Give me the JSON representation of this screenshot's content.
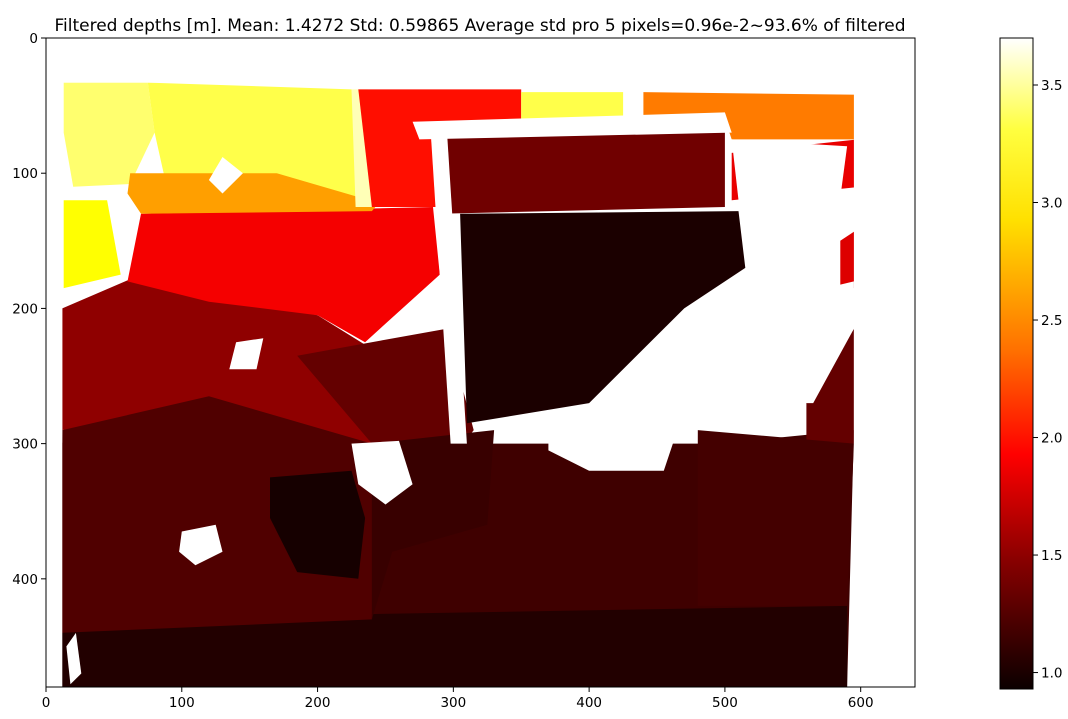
{
  "chart_data": {
    "type": "heatmap",
    "title": "Filtered depths [m]. Mean: 1.4272 Std: 0.59865 Average std pro 5 pixels=0.96e-2~93.6% of filtered",
    "xlabel": "",
    "ylabel": "",
    "xlim": [
      0,
      640
    ],
    "ylim": [
      480,
      0
    ],
    "xticks": [
      0,
      100,
      200,
      300,
      400,
      500,
      600
    ],
    "yticks": [
      0,
      100,
      200,
      300,
      400
    ],
    "grid": false,
    "colormap": "hot",
    "colorbar": {
      "range": [
        0.93,
        3.7
      ],
      "ticks": [
        1.0,
        1.5,
        2.0,
        2.5,
        3.0,
        3.5
      ],
      "tick_labels": [
        "1.0",
        "1.5",
        "2.0",
        "2.5",
        "3.0",
        "3.5"
      ],
      "placement": "right"
    },
    "missing_color": "#ffffff",
    "regions": [
      {
        "name": "lower-floor",
        "points": [
          [
            10,
            480
          ],
          [
            590,
            480
          ],
          [
            595,
            290
          ],
          [
            495,
            300
          ],
          [
            240,
            300
          ],
          [
            120,
            265
          ],
          [
            60,
            285
          ],
          [
            10,
            300
          ]
        ],
        "value": 1.15
      },
      {
        "name": "bottom-band",
        "points": [
          [
            10,
            480
          ],
          [
            590,
            480
          ],
          [
            590,
            420
          ],
          [
            10,
            430
          ]
        ],
        "value": 1.03
      },
      {
        "name": "left-wall-lower",
        "points": [
          [
            12,
            290
          ],
          [
            130,
            250
          ],
          [
            240,
            300
          ],
          [
            240,
            430
          ],
          [
            10,
            440
          ]
        ],
        "value": 1.22
      },
      {
        "name": "left-mid",
        "points": [
          [
            12,
            200
          ],
          [
            70,
            175
          ],
          [
            200,
            205
          ],
          [
            240,
            230
          ],
          [
            240,
            300
          ],
          [
            120,
            265
          ],
          [
            12,
            290
          ]
        ],
        "value": 1.48
      },
      {
        "name": "left-red-upper",
        "points": [
          [
            60,
            180
          ],
          [
            70,
            130
          ],
          [
            285,
            125
          ],
          [
            290,
            175
          ],
          [
            235,
            225
          ],
          [
            200,
            205
          ],
          [
            120,
            195
          ]
        ],
        "value": 1.9
      },
      {
        "name": "center-mid",
        "points": [
          [
            185,
            235
          ],
          [
            295,
            215
          ],
          [
            315,
            290
          ],
          [
            300,
            310
          ],
          [
            240,
            300
          ]
        ],
        "value": 1.3
      },
      {
        "name": "center-lower",
        "points": [
          [
            240,
            300
          ],
          [
            330,
            290
          ],
          [
            325,
            360
          ],
          [
            255,
            380
          ],
          [
            240,
            430
          ]
        ],
        "value": 1.12
      },
      {
        "name": "center-dark-object",
        "points": [
          [
            165,
            325
          ],
          [
            225,
            320
          ],
          [
            235,
            355
          ],
          [
            230,
            400
          ],
          [
            185,
            395
          ],
          [
            165,
            355
          ]
        ],
        "value": 0.98
      },
      {
        "name": "upper-left-bright",
        "points": [
          [
            13,
            33
          ],
          [
            75,
            33
          ],
          [
            80,
            70
          ],
          [
            62,
            108
          ],
          [
            20,
            110
          ],
          [
            13,
            70
          ]
        ],
        "value": 3.3
      },
      {
        "name": "upper-left-yellow",
        "points": [
          [
            75,
            33
          ],
          [
            225,
            38
          ],
          [
            240,
            125
          ],
          [
            170,
            125
          ],
          [
            90,
            115
          ],
          [
            80,
            70
          ]
        ],
        "value": 3.2
      },
      {
        "name": "upper-left-orange-band",
        "points": [
          [
            62,
            100
          ],
          [
            170,
            100
          ],
          [
            245,
            122
          ],
          [
            240,
            128
          ],
          [
            70,
            130
          ],
          [
            60,
            115
          ]
        ],
        "value": 2.6
      },
      {
        "name": "left-edge-bright",
        "points": [
          [
            13,
            120
          ],
          [
            45,
            120
          ],
          [
            55,
            175
          ],
          [
            13,
            185
          ]
        ],
        "value": 3.0
      },
      {
        "name": "pale-column",
        "points": [
          [
            225,
            38
          ],
          [
            237,
            38
          ],
          [
            240,
            125
          ],
          [
            228,
            125
          ]
        ],
        "value": 3.5
      },
      {
        "name": "upper-red-region",
        "points": [
          [
            230,
            38
          ],
          [
            350,
            38
          ],
          [
            350,
            125
          ],
          [
            285,
            125
          ],
          [
            240,
            125
          ]
        ],
        "value": 2.0
      },
      {
        "name": "upper-center-dark-red",
        "points": [
          [
            285,
            65
          ],
          [
            500,
            60
          ],
          [
            500,
            125
          ],
          [
            290,
            130
          ]
        ],
        "value": 1.35
      },
      {
        "name": "top-yellow-patch",
        "points": [
          [
            350,
            40
          ],
          [
            425,
            40
          ],
          [
            425,
            65
          ],
          [
            350,
            65
          ]
        ],
        "value": 3.2
      },
      {
        "name": "upper-right-orange",
        "points": [
          [
            440,
            40
          ],
          [
            600,
            42
          ],
          [
            598,
            75
          ],
          [
            505,
            75
          ],
          [
            500,
            60
          ],
          [
            440,
            60
          ]
        ],
        "value": 2.45
      },
      {
        "name": "upper-right-red",
        "points": [
          [
            505,
            85
          ],
          [
            598,
            75
          ],
          [
            600,
            110
          ],
          [
            505,
            120
          ]
        ],
        "value": 1.85
      },
      {
        "name": "center-dark-block",
        "points": [
          [
            305,
            130
          ],
          [
            510,
            128
          ],
          [
            515,
            170
          ],
          [
            470,
            200
          ],
          [
            400,
            270
          ],
          [
            310,
            285
          ]
        ],
        "value": 1.0
      },
      {
        "name": "right-lower-wall",
        "points": [
          [
            560,
            270
          ],
          [
            595,
            215
          ],
          [
            595,
            300
          ],
          [
            560,
            305
          ]
        ],
        "value": 1.3
      },
      {
        "name": "right-edge-red",
        "points": [
          [
            585,
            150
          ],
          [
            600,
            140
          ],
          [
            600,
            185
          ],
          [
            585,
            185
          ]
        ],
        "value": 1.8
      },
      {
        "name": "right-floor",
        "points": [
          [
            480,
            290
          ],
          [
            595,
            300
          ],
          [
            590,
            420
          ],
          [
            480,
            420
          ]
        ],
        "value": 1.17
      }
    ],
    "holes": [
      {
        "name": "outside-border-right",
        "points": [
          [
            595,
            30
          ],
          [
            640,
            30
          ],
          [
            640,
            480
          ],
          [
            595,
            480
          ]
        ]
      },
      {
        "name": "outside-border-top",
        "points": [
          [
            0,
            0
          ],
          [
            640,
            0
          ],
          [
            640,
            33
          ],
          [
            0,
            33
          ]
        ]
      },
      {
        "name": "outside-border-left",
        "points": [
          [
            0,
            0
          ],
          [
            12,
            0
          ],
          [
            12,
            480
          ],
          [
            0,
            480
          ]
        ]
      },
      {
        "name": "white-top-center",
        "points": [
          [
            270,
            62
          ],
          [
            500,
            55
          ],
          [
            505,
            70
          ],
          [
            275,
            75
          ]
        ]
      },
      {
        "name": "white-right-upper",
        "points": [
          [
            505,
            75
          ],
          [
            590,
            80
          ],
          [
            585,
            118
          ],
          [
            510,
            120
          ]
        ]
      },
      {
        "name": "white-vertical-strip",
        "points": [
          [
            283,
            65
          ],
          [
            295,
            65
          ],
          [
            310,
            300
          ],
          [
            298,
            300
          ]
        ]
      },
      {
        "name": "white-right-block",
        "points": [
          [
            470,
            210
          ],
          [
            595,
            180
          ],
          [
            595,
            215
          ],
          [
            565,
            270
          ],
          [
            525,
            270
          ],
          [
            480,
            240
          ]
        ]
      },
      {
        "name": "white-center-lower",
        "points": [
          [
            370,
            280
          ],
          [
            470,
            275
          ],
          [
            455,
            320
          ],
          [
            400,
            320
          ],
          [
            370,
            305
          ]
        ]
      },
      {
        "name": "white-small-1",
        "points": [
          [
            120,
            105
          ],
          [
            130,
            88
          ],
          [
            145,
            100
          ],
          [
            130,
            115
          ]
        ]
      },
      {
        "name": "white-small-2",
        "points": [
          [
            140,
            225
          ],
          [
            160,
            222
          ],
          [
            155,
            245
          ],
          [
            135,
            245
          ]
        ]
      },
      {
        "name": "white-small-3",
        "points": [
          [
            225,
            300
          ],
          [
            260,
            298
          ],
          [
            270,
            330
          ],
          [
            250,
            345
          ],
          [
            230,
            330
          ]
        ]
      },
      {
        "name": "white-small-4",
        "points": [
          [
            100,
            365
          ],
          [
            125,
            360
          ],
          [
            130,
            380
          ],
          [
            110,
            390
          ],
          [
            98,
            380
          ]
        ]
      },
      {
        "name": "white-small-5",
        "points": [
          [
            15,
            450
          ],
          [
            22,
            440
          ],
          [
            26,
            470
          ],
          [
            18,
            478
          ]
        ]
      }
    ]
  }
}
